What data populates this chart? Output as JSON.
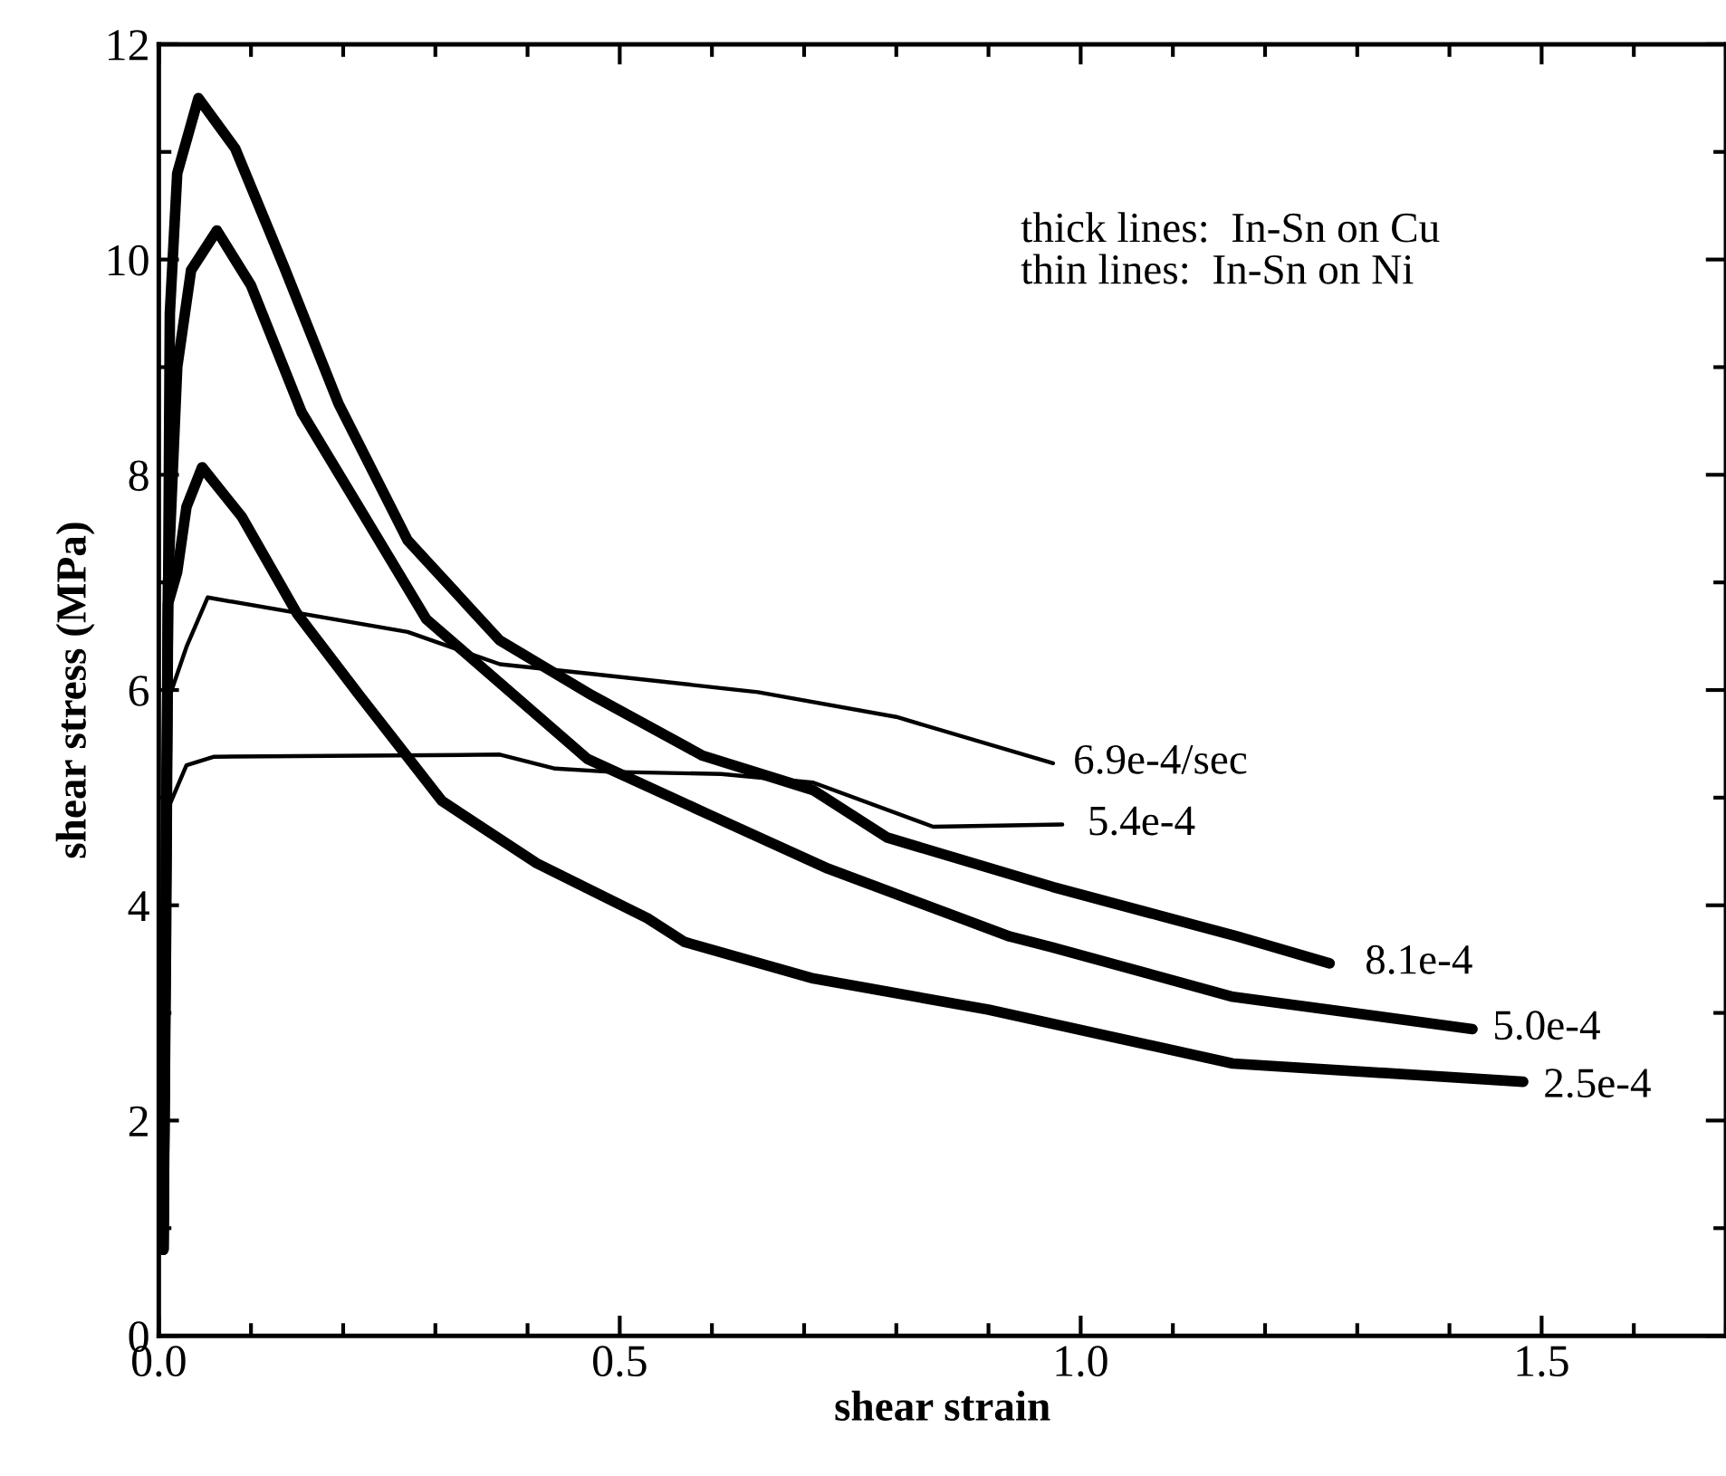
{
  "chart_data": {
    "type": "line",
    "xlabel": "shear strain",
    "ylabel": "shear stress (MPa)",
    "xlim": [
      0,
      1.7
    ],
    "ylim": [
      0,
      12
    ],
    "xticks": [
      {
        "value": 0,
        "label": "0.0"
      },
      0.5,
      {
        "value": 1,
        "label": "1.0"
      },
      1.5
    ],
    "yticks": [
      0,
      2,
      4,
      6,
      8,
      10,
      12
    ],
    "grid": false,
    "legend": false,
    "marker": "none",
    "line_style": "solid",
    "annotations": [
      "thick lines:  In-Sn on Cu\nthin lines:  In-Sn on Ni"
    ],
    "series": [
      {
        "name": "6.9e-4/sec",
        "color": "#000000",
        "x": [
          0.005,
          0.01,
          0.03,
          0.053,
          0.27,
          0.37,
          0.47,
          0.65,
          0.8,
          0.97
        ],
        "values": [
          0.8,
          5.9,
          6.4,
          6.86,
          6.54,
          6.24,
          6.15,
          5.98,
          5.75,
          5.32
        ]
      },
      {
        "name": "5.4e-4",
        "color": "#000000",
        "x": [
          0.005,
          0.01,
          0.03,
          0.06,
          0.37,
          0.43,
          0.49,
          0.61,
          0.71,
          0.84,
          0.98
        ],
        "values": [
          0.8,
          4.9,
          5.3,
          5.38,
          5.4,
          5.27,
          5.24,
          5.22,
          5.14,
          4.73,
          4.75
        ]
      },
      {
        "name": "8.1e-4",
        "color": "#000000",
        "x": [
          0.005,
          0.008,
          0.012,
          0.02,
          0.043,
          0.083,
          0.136,
          0.195,
          0.27,
          0.37,
          0.47,
          0.59,
          0.71,
          0.79,
          0.97,
          1.17,
          1.27
        ],
        "values": [
          0.8,
          3.8,
          9.5,
          10.8,
          11.5,
          11.03,
          9.93,
          8.66,
          7.39,
          6.46,
          5.95,
          5.39,
          5.07,
          4.63,
          4.17,
          3.71,
          3.46
        ]
      },
      {
        "name": "5.0e-4",
        "color": "#000000",
        "x": [
          0.005,
          0.01,
          0.02,
          0.035,
          0.063,
          0.1,
          0.155,
          0.215,
          0.29,
          0.465,
          0.595,
          0.726,
          0.923,
          0.969,
          1.165,
          1.425
        ],
        "values": [
          0.8,
          7.0,
          9.0,
          9.9,
          10.27,
          9.76,
          8.58,
          7.73,
          6.66,
          5.36,
          4.85,
          4.34,
          3.71,
          3.61,
          3.15,
          2.85
        ]
      },
      {
        "name": "2.5e-4",
        "color": "#000000",
        "x": [
          0.005,
          0.01,
          0.02,
          0.03,
          0.047,
          0.09,
          0.15,
          0.215,
          0.307,
          0.41,
          0.53,
          0.57,
          0.71,
          0.9,
          1.165,
          1.48
        ],
        "values": [
          0.8,
          6.8,
          7.1,
          7.7,
          8.07,
          7.61,
          6.71,
          5.98,
          4.97,
          4.39,
          3.88,
          3.66,
          3.32,
          3.03,
          2.53,
          2.36
        ]
      }
    ]
  }
}
